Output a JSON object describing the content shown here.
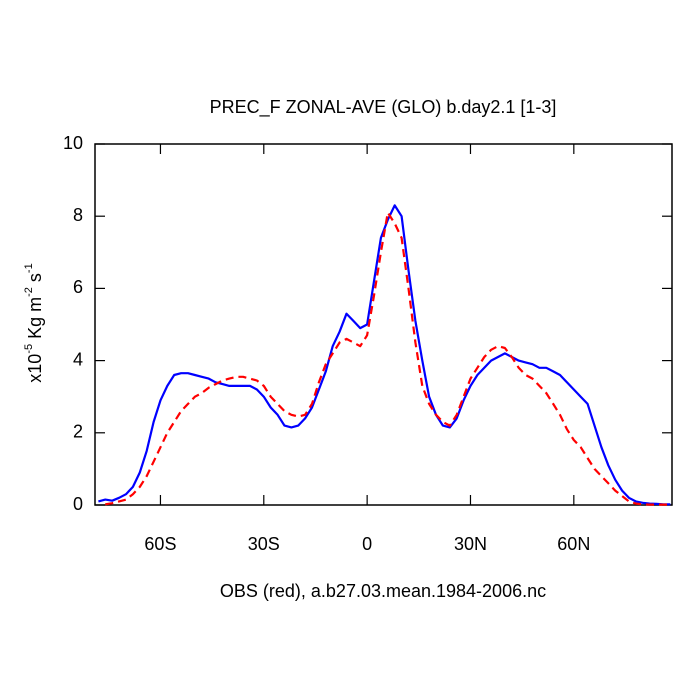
{
  "chart_data": {
    "type": "line",
    "title": "PREC_F ZONAL-AVE (GLO) b.day2.1 [1-3]",
    "caption": "OBS (red), a.b27.03.mean.1984-2006.nc",
    "ylabel_parts": [
      {
        "text": "x10"
      },
      {
        "text": "-5",
        "sup": true
      },
      {
        "text": " Kg m"
      },
      {
        "text": "-2",
        "sup": true
      },
      {
        "text": " s"
      },
      {
        "text": "-1",
        "sup": true
      }
    ],
    "xlim": [
      -79,
      88.5
    ],
    "ylim": [
      0,
      10
    ],
    "xticks": [
      {
        "value": -60,
        "label": "60S"
      },
      {
        "value": -30,
        "label": "30S"
      },
      0,
      {
        "value": 30,
        "label": "30N"
      },
      {
        "value": 60,
        "label": "60N"
      }
    ],
    "yticks": [
      0,
      2,
      4,
      6,
      8,
      10
    ],
    "x": [
      -78,
      -76,
      -74,
      -72,
      -70,
      -68,
      -66,
      -64,
      -62,
      -60,
      -58,
      -56,
      -54,
      -52,
      -50,
      -48,
      -46,
      -44,
      -42,
      -40,
      -38,
      -36,
      -34,
      -32,
      -30,
      -28,
      -26,
      -24,
      -22,
      -20,
      -18,
      -16,
      -14,
      -12,
      -10,
      -8,
      -6,
      -4,
      -2,
      0,
      2,
      4,
      6,
      8,
      10,
      12,
      14,
      16,
      18,
      20,
      22,
      24,
      26,
      28,
      30,
      32,
      34,
      36,
      38,
      40,
      42,
      44,
      46,
      48,
      50,
      52,
      54,
      56,
      58,
      60,
      62,
      64,
      66,
      68,
      70,
      72,
      74,
      76,
      78,
      80,
      82,
      84,
      86,
      88
    ],
    "series": [
      {
        "color": "#0000ff",
        "dash": false,
        "values": [
          0.1,
          0.15,
          0.12,
          0.2,
          0.3,
          0.5,
          0.9,
          1.5,
          2.3,
          2.9,
          3.3,
          3.6,
          3.65,
          3.65,
          3.6,
          3.55,
          3.5,
          3.4,
          3.35,
          3.3,
          3.3,
          3.3,
          3.3,
          3.2,
          3.0,
          2.7,
          2.5,
          2.2,
          2.15,
          2.2,
          2.4,
          2.7,
          3.2,
          3.7,
          4.4,
          4.8,
          5.3,
          5.1,
          4.9,
          5.0,
          6.2,
          7.4,
          7.9,
          8.3,
          8.0,
          6.5,
          5.1,
          4.0,
          3.0,
          2.5,
          2.2,
          2.15,
          2.4,
          2.9,
          3.3,
          3.6,
          3.8,
          4.0,
          4.1,
          4.2,
          4.1,
          4.0,
          3.95,
          3.9,
          3.8,
          3.8,
          3.7,
          3.6,
          3.4,
          3.2,
          3.0,
          2.8,
          2.2,
          1.6,
          1.1,
          0.7,
          0.4,
          0.2,
          0.1,
          0.06,
          0.04,
          0.03,
          0.02,
          0.02
        ]
      },
      {
        "color": "#ff0000",
        "dash": true,
        "values": [
          null,
          0.02,
          0.05,
          0.1,
          0.15,
          0.3,
          0.5,
          0.8,
          1.2,
          1.6,
          2.0,
          2.3,
          2.6,
          2.8,
          3.0,
          3.1,
          3.25,
          3.35,
          3.45,
          3.5,
          3.55,
          3.55,
          3.5,
          3.45,
          3.3,
          3.0,
          2.8,
          2.6,
          2.5,
          2.45,
          2.5,
          2.8,
          3.4,
          3.9,
          4.2,
          4.5,
          4.6,
          4.5,
          4.4,
          4.7,
          5.8,
          7.0,
          8.1,
          7.8,
          7.4,
          6.0,
          4.5,
          3.3,
          2.8,
          2.5,
          2.3,
          2.2,
          2.5,
          3.0,
          3.5,
          3.8,
          4.1,
          4.3,
          4.4,
          4.35,
          4.1,
          3.8,
          3.6,
          3.5,
          3.3,
          3.1,
          2.8,
          2.5,
          2.1,
          1.8,
          1.6,
          1.3,
          1.0,
          0.8,
          0.6,
          0.4,
          0.25,
          0.1,
          0.04,
          0.02,
          0.01,
          0.01,
          0.01,
          0.01
        ]
      }
    ]
  }
}
